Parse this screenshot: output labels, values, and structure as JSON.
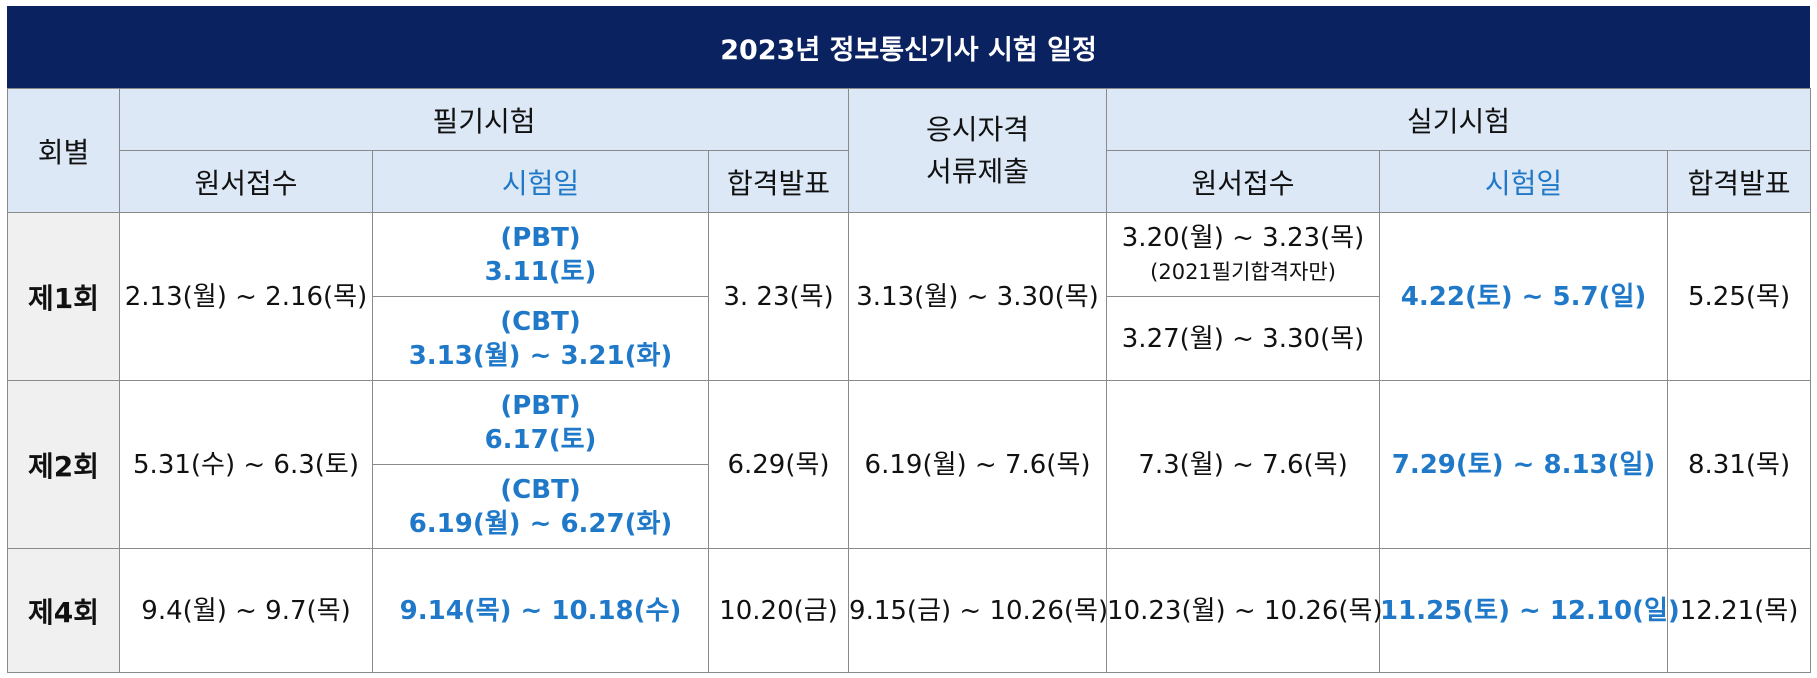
{
  "title": "2023년 정보통신기사 시험 일정",
  "headers": {
    "round": "회별",
    "written": "필기시험",
    "written_apply": "원서접수",
    "written_exam": "시험일",
    "written_result": "합격발표",
    "docs_line1": "응시자격",
    "docs_line2": "서류제출",
    "practical": "실기시험",
    "practical_apply": "원서접수",
    "practical_exam": "시험일",
    "practical_result": "합격발표"
  },
  "rows": [
    {
      "round": "제1회",
      "written_apply": "2.13(월) ~ 2.16(목)",
      "pbt_label": "(PBT)",
      "pbt_date": "3.11(토)",
      "cbt_label": "(CBT)",
      "cbt_date": "3.13(월) ~ 3.21(화)",
      "written_result": "3. 23(목)",
      "docs": "3.13(월) ~ 3.30(목)",
      "practical_apply_a": "3.20(월) ~ 3.23(목)",
      "practical_apply_note": "(2021필기합격자만)",
      "practical_apply_b": "3.27(월) ~ 3.30(목)",
      "practical_exam": "4.22(토) ~ 5.7(일)",
      "practical_result": "5.25(목)"
    },
    {
      "round": "제2회",
      "written_apply": "5.31(수) ~ 6.3(토)",
      "pbt_label": "(PBT)",
      "pbt_date": "6.17(토)",
      "cbt_label": "(CBT)",
      "cbt_date": "6.19(월) ~ 6.27(화)",
      "written_result": "6.29(목)",
      "docs": "6.19(월) ~ 7.6(목)",
      "practical_apply": "7.3(월) ~ 7.6(목)",
      "practical_exam": "7.29(토) ~ 8.13(일)",
      "practical_result": "8.31(목)"
    },
    {
      "round": "제4회",
      "written_apply": "9.4(월) ~ 9.7(목)",
      "written_exam": "9.14(목) ~ 10.18(수)",
      "written_result": "10.20(금)",
      "docs": "9.15(금) ~ 10.26(목)",
      "practical_apply": "10.23(월) ~ 10.26(목)",
      "practical_exam": "11.25(토) ~ 12.10(일)",
      "practical_result": "12.21(목)"
    }
  ],
  "colors": {
    "title_bg": "#0b2260",
    "header_bg": "#dce8f6",
    "accent": "#1f78c8",
    "round_bg": "#f0f0f0"
  }
}
